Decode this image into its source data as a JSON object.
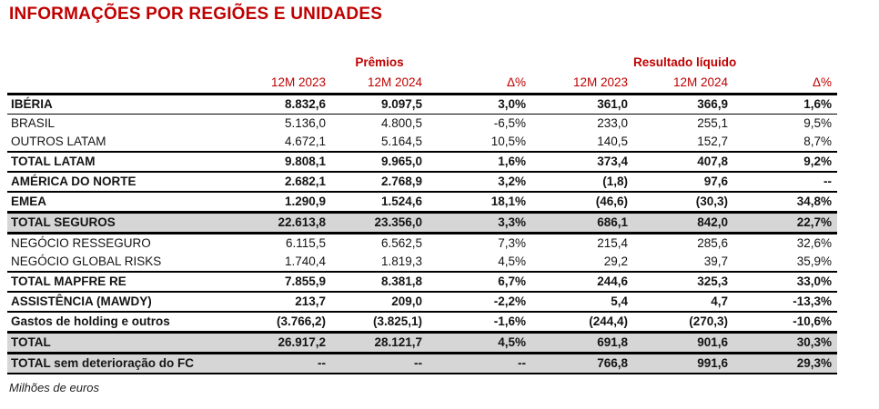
{
  "title": "INFORMAÇÕES POR REGIÕES E UNIDADES",
  "footnote": "Milhões de euros",
  "colors": {
    "accent_red": "#C00000",
    "shaded_row_bg": "#D6D6D6",
    "border": "#000000",
    "text": "#141414"
  },
  "table": {
    "group_headers": {
      "premios": "Prêmios",
      "resultado": "Resultado líquido"
    },
    "column_headers": [
      "12M 2023",
      "12M 2024",
      "Δ%",
      "12M 2023",
      "12M 2024",
      "Δ%"
    ],
    "rows": [
      {
        "label": "IBÉRIA",
        "values": [
          "8.832,6",
          "9.097,5",
          "3,0%",
          "361,0",
          "366,9",
          "1,6%"
        ],
        "bold": true,
        "shaded": false,
        "border_bottom": "thin"
      },
      {
        "label": "BRASIL",
        "values": [
          "5.136,0",
          "4.800,5",
          "-6,5%",
          "233,0",
          "255,1",
          "9,5%"
        ],
        "bold": false,
        "shaded": false,
        "border_bottom": "none"
      },
      {
        "label": "OUTROS LATAM",
        "values": [
          "4.672,1",
          "5.164,5",
          "10,5%",
          "140,5",
          "152,7",
          "8,7%"
        ],
        "bold": false,
        "shaded": false,
        "border_bottom": "medium"
      },
      {
        "label": "TOTAL LATAM",
        "values": [
          "9.808,1",
          "9.965,0",
          "1,6%",
          "373,4",
          "407,8",
          "9,2%"
        ],
        "bold": true,
        "shaded": false,
        "border_bottom": "medium"
      },
      {
        "label": "AMÉRICA DO NORTE",
        "values": [
          "2.682,1",
          "2.768,9",
          "3,2%",
          "(1,8)",
          "97,6",
          "--"
        ],
        "bold": true,
        "shaded": false,
        "border_bottom": "medium"
      },
      {
        "label": "EMEA",
        "values": [
          "1.290,9",
          "1.524,6",
          "18,1%",
          "(46,6)",
          "(30,3)",
          "34,8%"
        ],
        "bold": true,
        "shaded": false,
        "border_bottom": "thick"
      },
      {
        "label": "TOTAL SEGUROS",
        "values": [
          "22.613,8",
          "23.356,0",
          "3,3%",
          "686,1",
          "842,0",
          "22,7%"
        ],
        "bold": true,
        "shaded": true,
        "border_bottom": "thick"
      },
      {
        "label": "NEGÓCIO RESSEGURO",
        "values": [
          "6.115,5",
          "6.562,5",
          "7,3%",
          "215,4",
          "285,6",
          "32,6%"
        ],
        "bold": false,
        "shaded": false,
        "border_bottom": "none"
      },
      {
        "label": "NEGÓCIO GLOBAL RISKS",
        "values": [
          "1.740,4",
          "1.819,3",
          "4,5%",
          "29,2",
          "39,7",
          "35,9%"
        ],
        "bold": false,
        "shaded": false,
        "border_bottom": "medium"
      },
      {
        "label": "TOTAL MAPFRE RE",
        "values": [
          "7.855,9",
          "8.381,8",
          "6,7%",
          "244,6",
          "325,3",
          "33,0%"
        ],
        "bold": true,
        "shaded": false,
        "border_bottom": "medium"
      },
      {
        "label": "ASSISTÊNCIA (MAWDY)",
        "values": [
          "213,7",
          "209,0",
          "-2,2%",
          "5,4",
          "4,7",
          "-13,3%"
        ],
        "bold": true,
        "shaded": false,
        "border_bottom": "medium"
      },
      {
        "label": "Gastos de holding e outros",
        "values": [
          "(3.766,2)",
          "(3.825,1)",
          "-1,6%",
          "(244,4)",
          "(270,3)",
          "-10,6%"
        ],
        "bold": true,
        "shaded": false,
        "border_bottom": "thick"
      },
      {
        "label": "TOTAL",
        "values": [
          "26.917,2",
          "28.121,7",
          "4,5%",
          "691,8",
          "901,6",
          "30,3%"
        ],
        "bold": true,
        "shaded": true,
        "border_bottom": "thick"
      },
      {
        "label": "TOTAL sem deterioração do FC",
        "values": [
          "--",
          "--",
          "--",
          "766,8",
          "991,6",
          "29,3%"
        ],
        "bold": true,
        "shaded": true,
        "border_bottom": "medium"
      }
    ]
  }
}
